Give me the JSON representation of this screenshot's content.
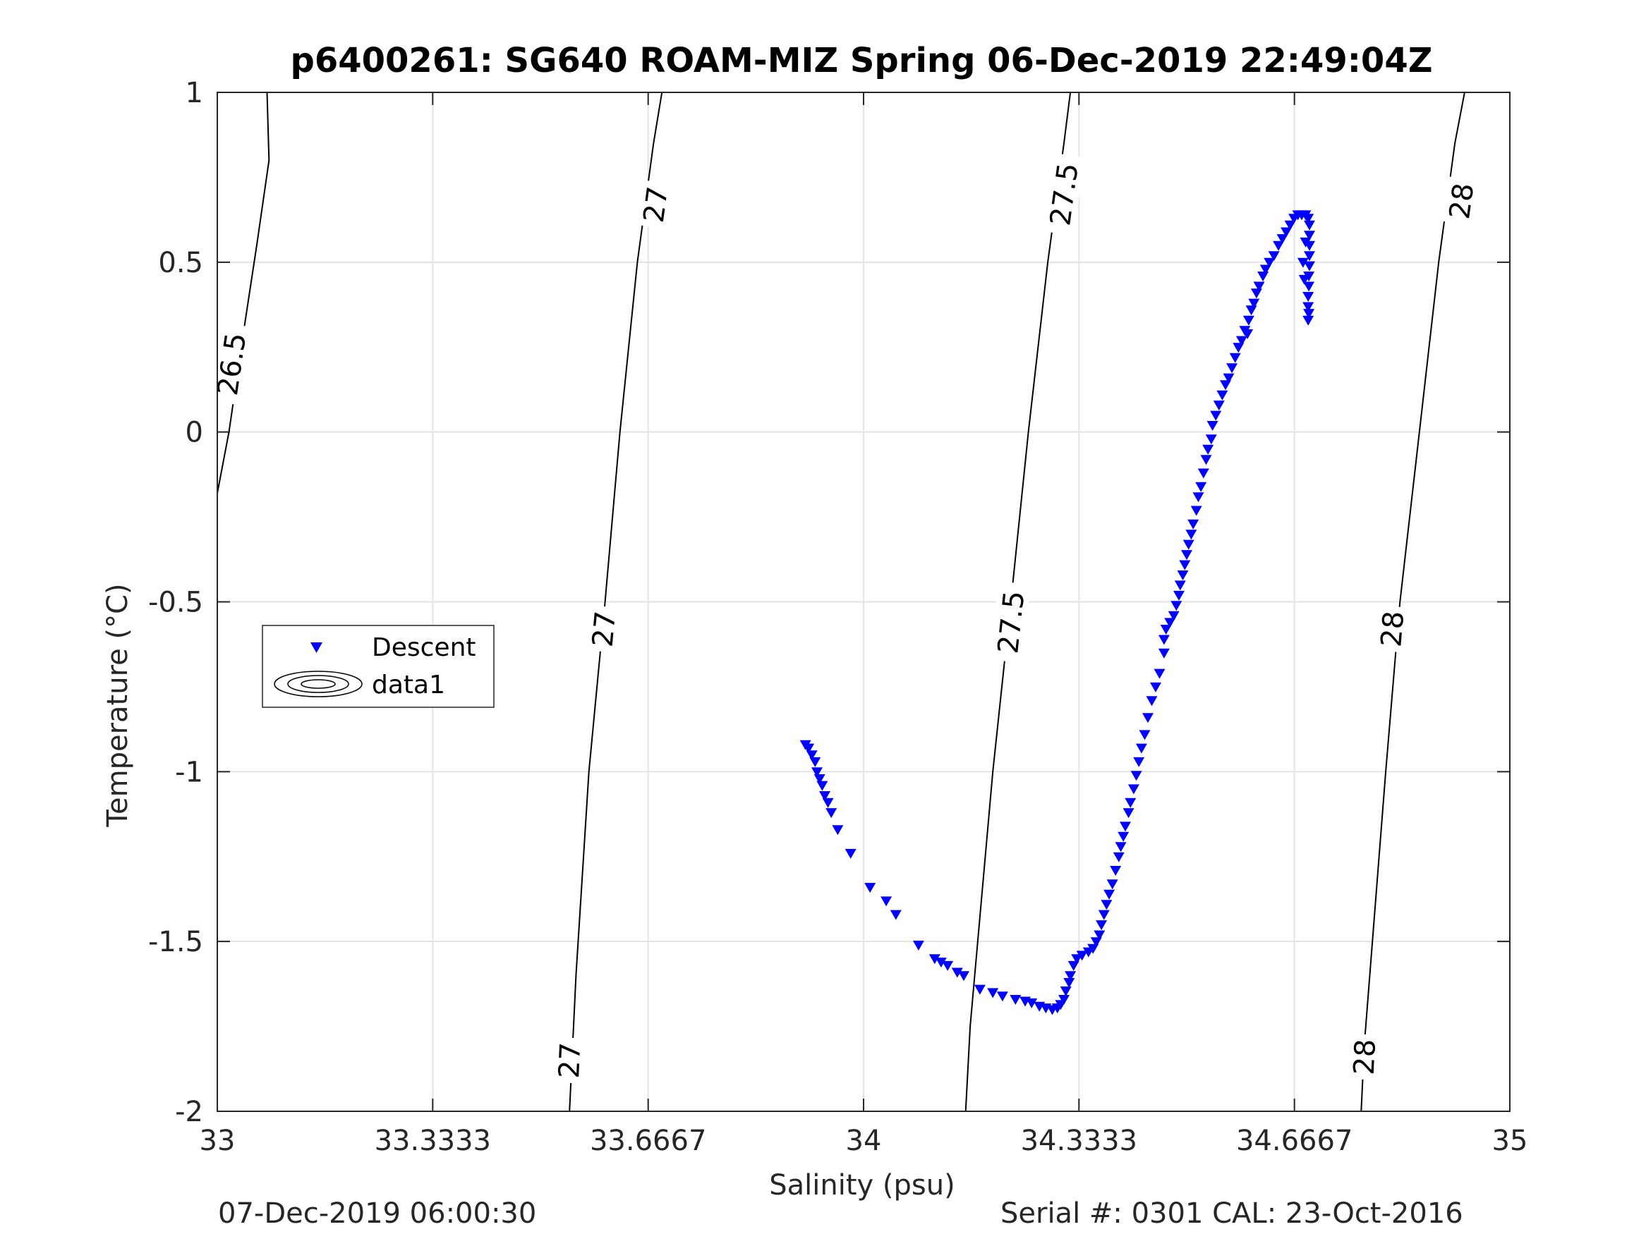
{
  "chart_data": {
    "type": "scatter",
    "title": "p6400261: SG640 ROAM-MIZ Spring 06-Dec-2019 22:49:04Z",
    "xlabel": "Salinity (psu)",
    "ylabel": "Temperature (°C)",
    "xlim": [
      33,
      35
    ],
    "ylim": [
      -2,
      1
    ],
    "xticks": [
      33,
      33.3333,
      33.6667,
      34,
      34.3333,
      34.6667,
      35
    ],
    "xtick_labels": [
      "33",
      "33.3333",
      "33.6667",
      "34",
      "34.3333",
      "34.6667",
      "35"
    ],
    "yticks": [
      -2,
      -1.5,
      -1,
      -0.5,
      0,
      0.5,
      1
    ],
    "ytick_labels": [
      "-2",
      "-1.5",
      "-1",
      "-0.5",
      "0",
      "0.5",
      "1"
    ],
    "grid": true,
    "legend_position": "middle-left",
    "legend": [
      {
        "label": "Descent",
        "marker": "triangle-down",
        "color": "#0000ff"
      },
      {
        "label": "data1",
        "marker": "contour",
        "color": "#000000"
      }
    ],
    "contours": [
      {
        "level": 26.5,
        "points": [
          [
            33.0,
            -0.18
          ],
          [
            33.018,
            0.0
          ],
          [
            33.041,
            0.3
          ],
          [
            33.061,
            0.55
          ],
          [
            33.08,
            0.8
          ],
          [
            33.077,
            1.0
          ]
        ],
        "labels": [
          {
            "text": "26.5",
            "x": 33.022,
            "y": 0.2
          }
        ]
      },
      {
        "level": 27,
        "points": [
          [
            33.545,
            -2.0
          ],
          [
            33.555,
            -1.6
          ],
          [
            33.575,
            -1.0
          ],
          [
            33.6,
            -0.5
          ],
          [
            33.623,
            0.0
          ],
          [
            33.65,
            0.5
          ],
          [
            33.675,
            0.85
          ],
          [
            33.688,
            1.0
          ]
        ],
        "labels": [
          {
            "text": "27",
            "x": 33.545,
            "y": -1.85
          },
          {
            "text": "27",
            "x": 33.598,
            "y": -0.58
          },
          {
            "text": "27",
            "x": 33.678,
            "y": 0.67
          }
        ]
      },
      {
        "level": 27.5,
        "points": [
          [
            34.158,
            -2.0
          ],
          [
            34.165,
            -1.75
          ],
          [
            34.2,
            -1.0
          ],
          [
            34.228,
            -0.5
          ],
          [
            34.255,
            0.0
          ],
          [
            34.285,
            0.5
          ],
          [
            34.31,
            0.85
          ],
          [
            34.32,
            1.0
          ]
        ],
        "labels": [
          {
            "text": "27.5",
            "x": 34.228,
            "y": -0.56
          },
          {
            "text": "27.5",
            "x": 34.31,
            "y": 0.7
          }
        ]
      },
      {
        "level": 28,
        "points": [
          [
            34.77,
            -2.0
          ],
          [
            34.775,
            -1.8
          ],
          [
            34.808,
            -1.0
          ],
          [
            34.83,
            -0.5
          ],
          [
            34.86,
            0.0
          ],
          [
            34.89,
            0.5
          ],
          [
            34.915,
            0.85
          ],
          [
            34.93,
            1.0
          ]
        ],
        "labels": [
          {
            "text": "28",
            "x": 34.775,
            "y": -1.84
          },
          {
            "text": "28",
            "x": 34.818,
            "y": -0.58
          },
          {
            "text": "28",
            "x": 34.925,
            "y": 0.68
          }
        ]
      }
    ],
    "series": [
      {
        "name": "Descent",
        "marker": "triangle-down",
        "color": "#0000ff",
        "points": [
          [
            33.91,
            -0.92
          ],
          [
            33.915,
            -0.93
          ],
          [
            33.92,
            -0.95
          ],
          [
            33.925,
            -0.97
          ],
          [
            33.928,
            -1.0
          ],
          [
            33.932,
            -1.02
          ],
          [
            33.936,
            -1.04
          ],
          [
            33.94,
            -1.07
          ],
          [
            33.945,
            -1.09
          ],
          [
            33.95,
            -1.12
          ],
          [
            33.96,
            -1.17
          ],
          [
            33.98,
            -1.24
          ],
          [
            34.01,
            -1.34
          ],
          [
            34.035,
            -1.38
          ],
          [
            34.05,
            -1.42
          ],
          [
            34.085,
            -1.51
          ],
          [
            34.11,
            -1.55
          ],
          [
            34.12,
            -1.56
          ],
          [
            34.13,
            -1.57
          ],
          [
            34.145,
            -1.59
          ],
          [
            34.155,
            -1.6
          ],
          [
            34.18,
            -1.64
          ],
          [
            34.2,
            -1.65
          ],
          [
            34.215,
            -1.66
          ],
          [
            34.235,
            -1.67
          ],
          [
            34.25,
            -1.675
          ],
          [
            34.26,
            -1.68
          ],
          [
            34.272,
            -1.69
          ],
          [
            34.282,
            -1.695
          ],
          [
            34.292,
            -1.7
          ],
          [
            34.3,
            -1.695
          ],
          [
            34.305,
            -1.685
          ],
          [
            34.31,
            -1.67
          ],
          [
            34.313,
            -1.645
          ],
          [
            34.318,
            -1.62
          ],
          [
            34.32,
            -1.6
          ],
          [
            34.325,
            -1.57
          ],
          [
            34.33,
            -1.55
          ],
          [
            34.338,
            -1.54
          ],
          [
            34.348,
            -1.53
          ],
          [
            34.355,
            -1.52
          ],
          [
            34.36,
            -1.5
          ],
          [
            34.365,
            -1.48
          ],
          [
            34.368,
            -1.45
          ],
          [
            34.372,
            -1.42
          ],
          [
            34.376,
            -1.39
          ],
          [
            34.38,
            -1.36
          ],
          [
            34.385,
            -1.33
          ],
          [
            34.39,
            -1.29
          ],
          [
            34.395,
            -1.25
          ],
          [
            34.398,
            -1.22
          ],
          [
            34.402,
            -1.19
          ],
          [
            34.405,
            -1.16
          ],
          [
            34.41,
            -1.12
          ],
          [
            34.413,
            -1.09
          ],
          [
            34.418,
            -1.05
          ],
          [
            34.422,
            -1.01
          ],
          [
            34.426,
            -0.97
          ],
          [
            34.43,
            -0.93
          ],
          [
            34.435,
            -0.89
          ],
          [
            34.44,
            -0.84
          ],
          [
            34.446,
            -0.79
          ],
          [
            34.452,
            -0.75
          ],
          [
            34.458,
            -0.71
          ],
          [
            34.465,
            -0.65
          ],
          [
            34.465,
            -0.61
          ],
          [
            34.468,
            -0.58
          ],
          [
            34.474,
            -0.56
          ],
          [
            34.48,
            -0.54
          ],
          [
            34.484,
            -0.51
          ],
          [
            34.488,
            -0.48
          ],
          [
            34.49,
            -0.45
          ],
          [
            34.494,
            -0.42
          ],
          [
            34.497,
            -0.39
          ],
          [
            34.5,
            -0.36
          ],
          [
            34.503,
            -0.33
          ],
          [
            34.507,
            -0.3
          ],
          [
            34.51,
            -0.27
          ],
          [
            34.515,
            -0.23
          ],
          [
            34.518,
            -0.19
          ],
          [
            34.522,
            -0.16
          ],
          [
            34.526,
            -0.12
          ],
          [
            34.53,
            -0.08
          ],
          [
            34.533,
            -0.05
          ],
          [
            34.538,
            -0.02
          ],
          [
            34.54,
            0.02
          ],
          [
            34.545,
            0.05
          ],
          [
            34.55,
            0.08
          ],
          [
            34.555,
            0.11
          ],
          [
            34.56,
            0.14
          ],
          [
            34.565,
            0.16
          ],
          [
            34.57,
            0.19
          ],
          [
            34.575,
            0.22
          ],
          [
            34.58,
            0.25
          ],
          [
            34.585,
            0.27
          ],
          [
            34.59,
            0.3
          ],
          [
            34.594,
            0.29
          ],
          [
            34.596,
            0.33
          ],
          [
            34.6,
            0.36
          ],
          [
            34.604,
            0.38
          ],
          [
            34.608,
            0.41
          ],
          [
            34.612,
            0.43
          ],
          [
            34.618,
            0.46
          ],
          [
            34.622,
            0.48
          ],
          [
            34.628,
            0.5
          ],
          [
            34.635,
            0.52
          ],
          [
            34.642,
            0.55
          ],
          [
            34.648,
            0.57
          ],
          [
            34.654,
            0.59
          ],
          [
            34.66,
            0.61
          ],
          [
            34.666,
            0.63
          ],
          [
            34.672,
            0.64
          ],
          [
            34.678,
            0.64
          ],
          [
            34.684,
            0.64
          ],
          [
            34.688,
            0.63
          ],
          [
            34.69,
            0.61
          ],
          [
            34.69,
            0.58
          ],
          [
            34.69,
            0.55
          ],
          [
            34.69,
            0.52
          ],
          [
            34.69,
            0.49
          ],
          [
            34.689,
            0.46
          ],
          [
            34.689,
            0.43
          ],
          [
            34.688,
            0.4
          ],
          [
            34.688,
            0.37
          ],
          [
            34.689,
            0.35
          ],
          [
            34.688,
            0.33
          ],
          [
            34.682,
            0.45
          ],
          [
            34.68,
            0.5
          ],
          [
            34.684,
            0.56
          ]
        ]
      }
    ]
  },
  "footer": {
    "left": "07-Dec-2019 06:00:30",
    "right": "Serial #: 0301  CAL: 23-Oct-2016"
  }
}
